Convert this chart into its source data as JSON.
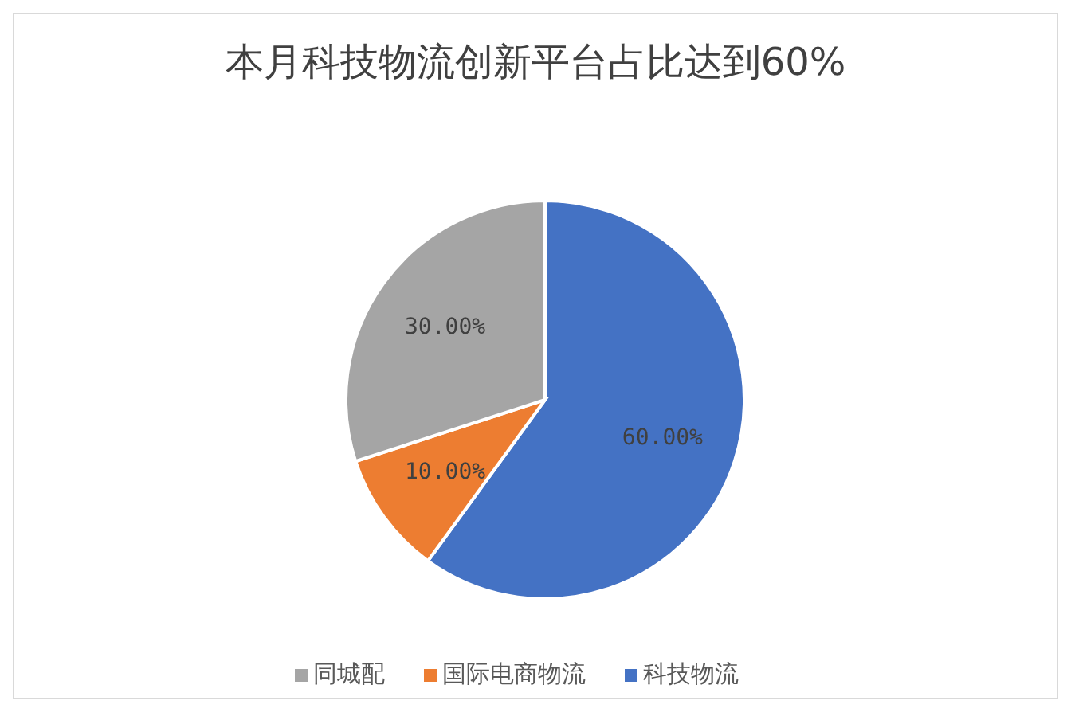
{
  "chart_data": {
    "type": "pie",
    "title": "本月科技物流创新平台占比达到60%",
    "categories": [
      "科技物流",
      "国际电商物流",
      "同城配"
    ],
    "values": [
      60,
      10,
      30
    ],
    "colors": [
      "#4472c4",
      "#ed7d31",
      "#a5a5a5"
    ],
    "value_labels": [
      "60.00%",
      "10.00%",
      "30.00%"
    ],
    "legend": "bottom"
  }
}
